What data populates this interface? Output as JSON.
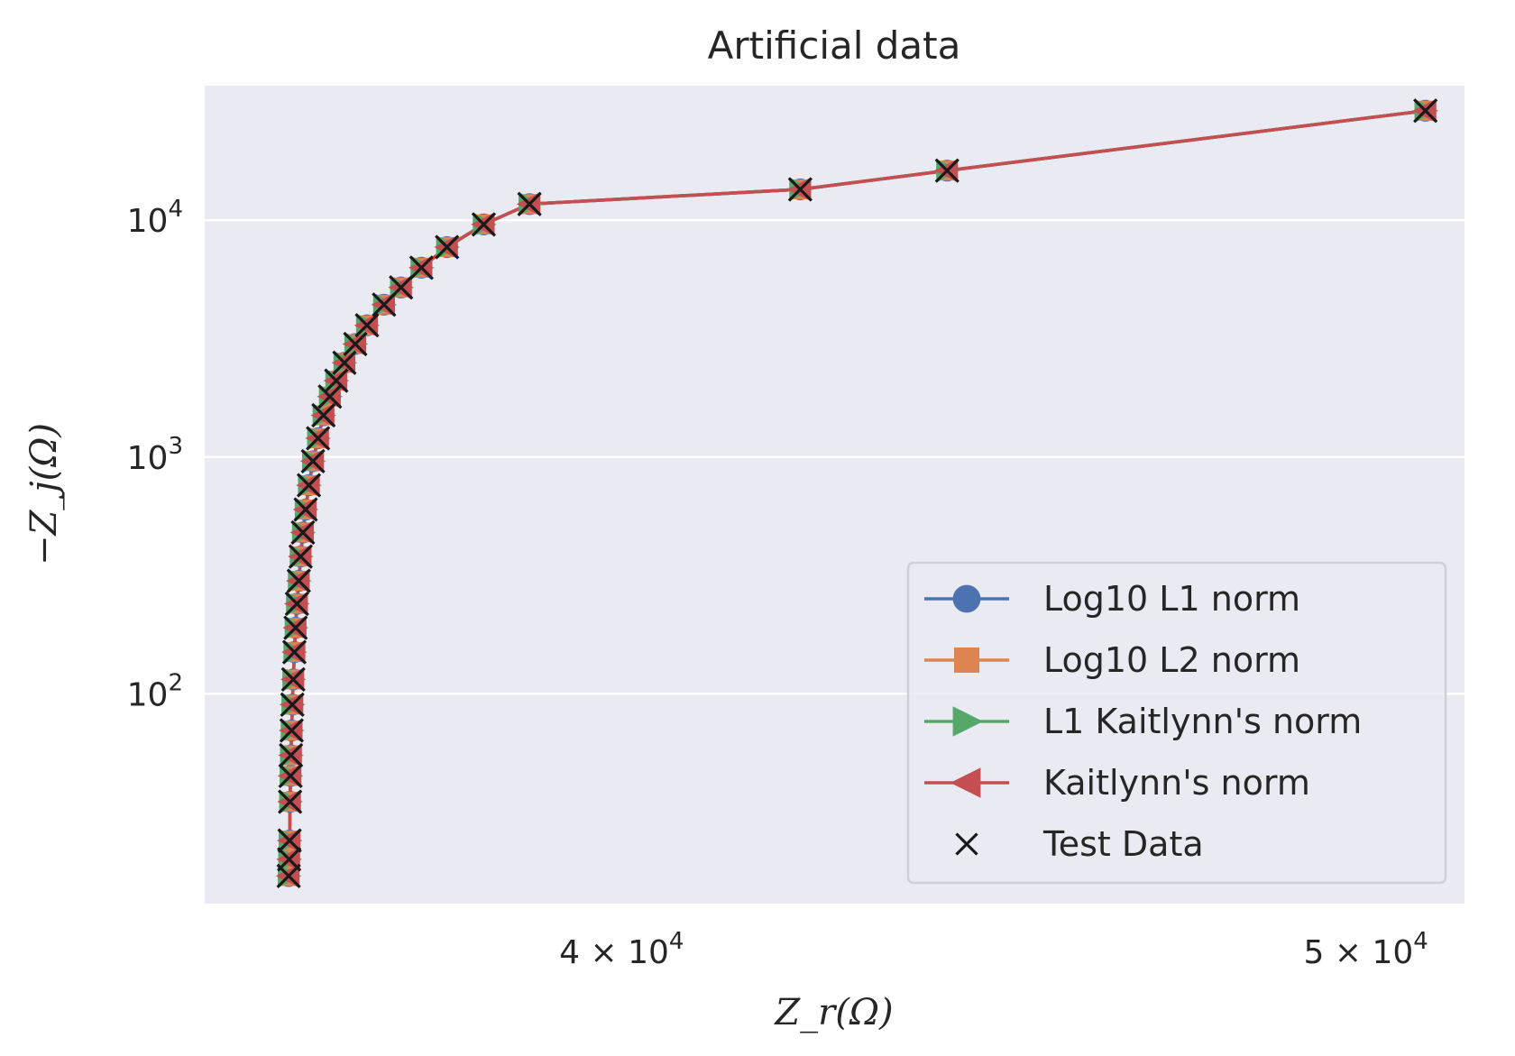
{
  "chart_data": {
    "type": "line",
    "title": "Artificial data",
    "xlabel": "Z_r(Ω)",
    "ylabel": "−Z_j(Ω)",
    "x_scale": "log",
    "y_scale": "log",
    "xlim": [
      35300,
      51500
    ],
    "ylim": [
      13,
      37000
    ],
    "x_ticks": [
      {
        "value": 40000,
        "mantissa": "4",
        "base": "10",
        "exp": "4"
      },
      {
        "value": 50000,
        "mantissa": "5",
        "base": "10",
        "exp": "4"
      }
    ],
    "y_ticks": [
      {
        "value": 100,
        "base": "10",
        "exp": "2"
      },
      {
        "value": 1000,
        "base": "10",
        "exp": "3"
      },
      {
        "value": 10000,
        "base": "10",
        "exp": "4"
      }
    ],
    "grid": true,
    "legend_position": "lower right",
    "x": [
      36200,
      36205,
      36210,
      36215,
      36220,
      36225,
      36232,
      36240,
      36250,
      36262,
      36275,
      36290,
      36310,
      36330,
      36355,
      36385,
      36420,
      36465,
      36520,
      36580,
      36650,
      36720,
      36810,
      36930,
      37060,
      37250,
      37440,
      37670,
      37960,
      38380,
      38910,
      42200,
      44100,
      50900
    ],
    "y": [
      17,
      20,
      24,
      35,
      45,
      55,
      70,
      90,
      115,
      150,
      190,
      240,
      300,
      380,
      480,
      600,
      760,
      960,
      1200,
      1500,
      1800,
      2100,
      2500,
      3000,
      3600,
      4400,
      5200,
      6300,
      7700,
      9600,
      11700,
      13500,
      16200,
      29000
    ],
    "series": [
      {
        "name": "Log10 L1 norm",
        "color": "#4c72b0",
        "marker": "circle"
      },
      {
        "name": "Log10 L2 norm",
        "color": "#dd8452",
        "marker": "square"
      },
      {
        "name": "L1 Kaitlynn's norm",
        "color": "#55a868",
        "marker": "triangle-right"
      },
      {
        "name": "Kaitlynn's norm",
        "color": "#c44e52",
        "marker": "triangle-left"
      },
      {
        "name": "Test Data",
        "color": "#1a1a1a",
        "marker": "x"
      }
    ]
  },
  "colors": {
    "plot_background": "#eaeaf2",
    "grid": "#ffffff",
    "text": "#262626"
  }
}
